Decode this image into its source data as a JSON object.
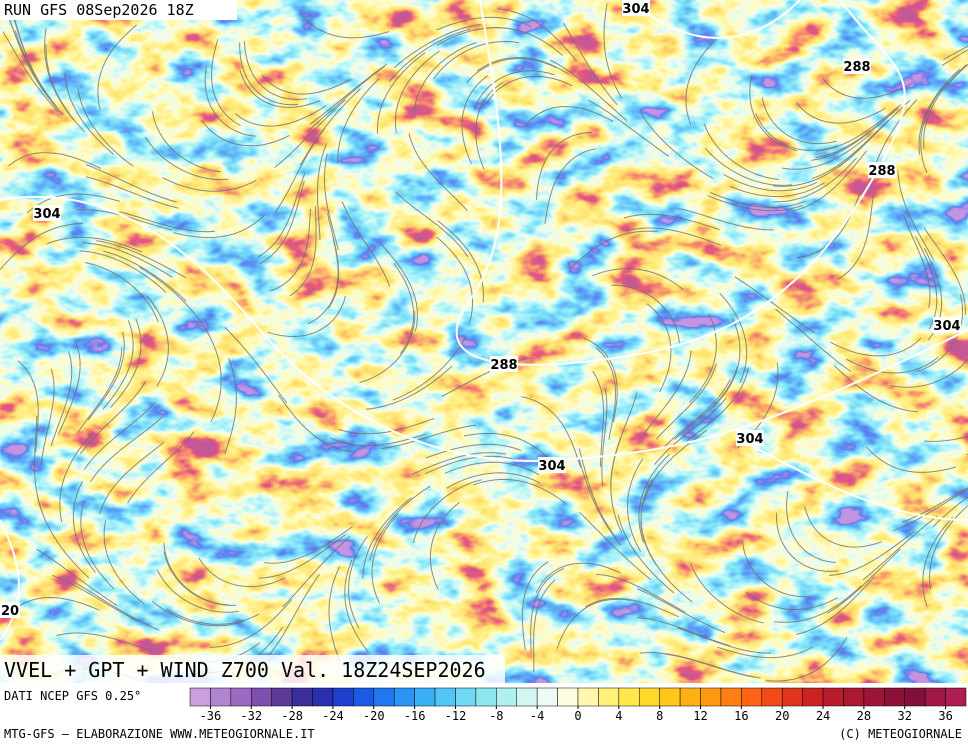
{
  "header": {
    "run": "RUN GFS 08Sep2026 18Z"
  },
  "map": {
    "title": "VVEL + GPT + WIND Z700 Val. 18Z24SEP2026",
    "contour_labels": [
      "304",
      "288",
      "288",
      "304",
      "304",
      "288",
      "304",
      "304",
      "20"
    ]
  },
  "legend": {
    "source": "DATI NCEP GFS 0.25°",
    "range": [
      -38,
      38
    ],
    "ticks": [
      -36,
      -32,
      -28,
      -24,
      -20,
      -16,
      -12,
      -8,
      -4,
      0,
      4,
      8,
      12,
      16,
      20,
      24,
      28,
      32,
      36
    ],
    "colors": [
      "#c9a0dc",
      "#b184cf",
      "#9a6bc0",
      "#7f4fae",
      "#5b3a9a",
      "#3a2f9a",
      "#2a2fb0",
      "#1f3fd0",
      "#1c5ae6",
      "#1f78f0",
      "#2b95f4",
      "#3cb0f6",
      "#52c6f4",
      "#6fd8f2",
      "#8ee6f0",
      "#b0f0f0",
      "#d2f6f2",
      "#eefaf4",
      "#fffde0",
      "#fff7b0",
      "#fff07a",
      "#ffe84a",
      "#ffd92a",
      "#ffc61c",
      "#ffb014",
      "#ff9912",
      "#ff7f12",
      "#ff6414",
      "#f24a18",
      "#e0341c",
      "#cc2222",
      "#bb1c2c",
      "#aa1834",
      "#9c1438",
      "#8e113a",
      "#80103a",
      "#a01848",
      "#b01c54"
    ]
  },
  "footer": {
    "left": "MTG-GFS — ELABORAZIONE WWW.METEOGIORNALE.IT",
    "right": "(C) METEOGIORNALE"
  }
}
